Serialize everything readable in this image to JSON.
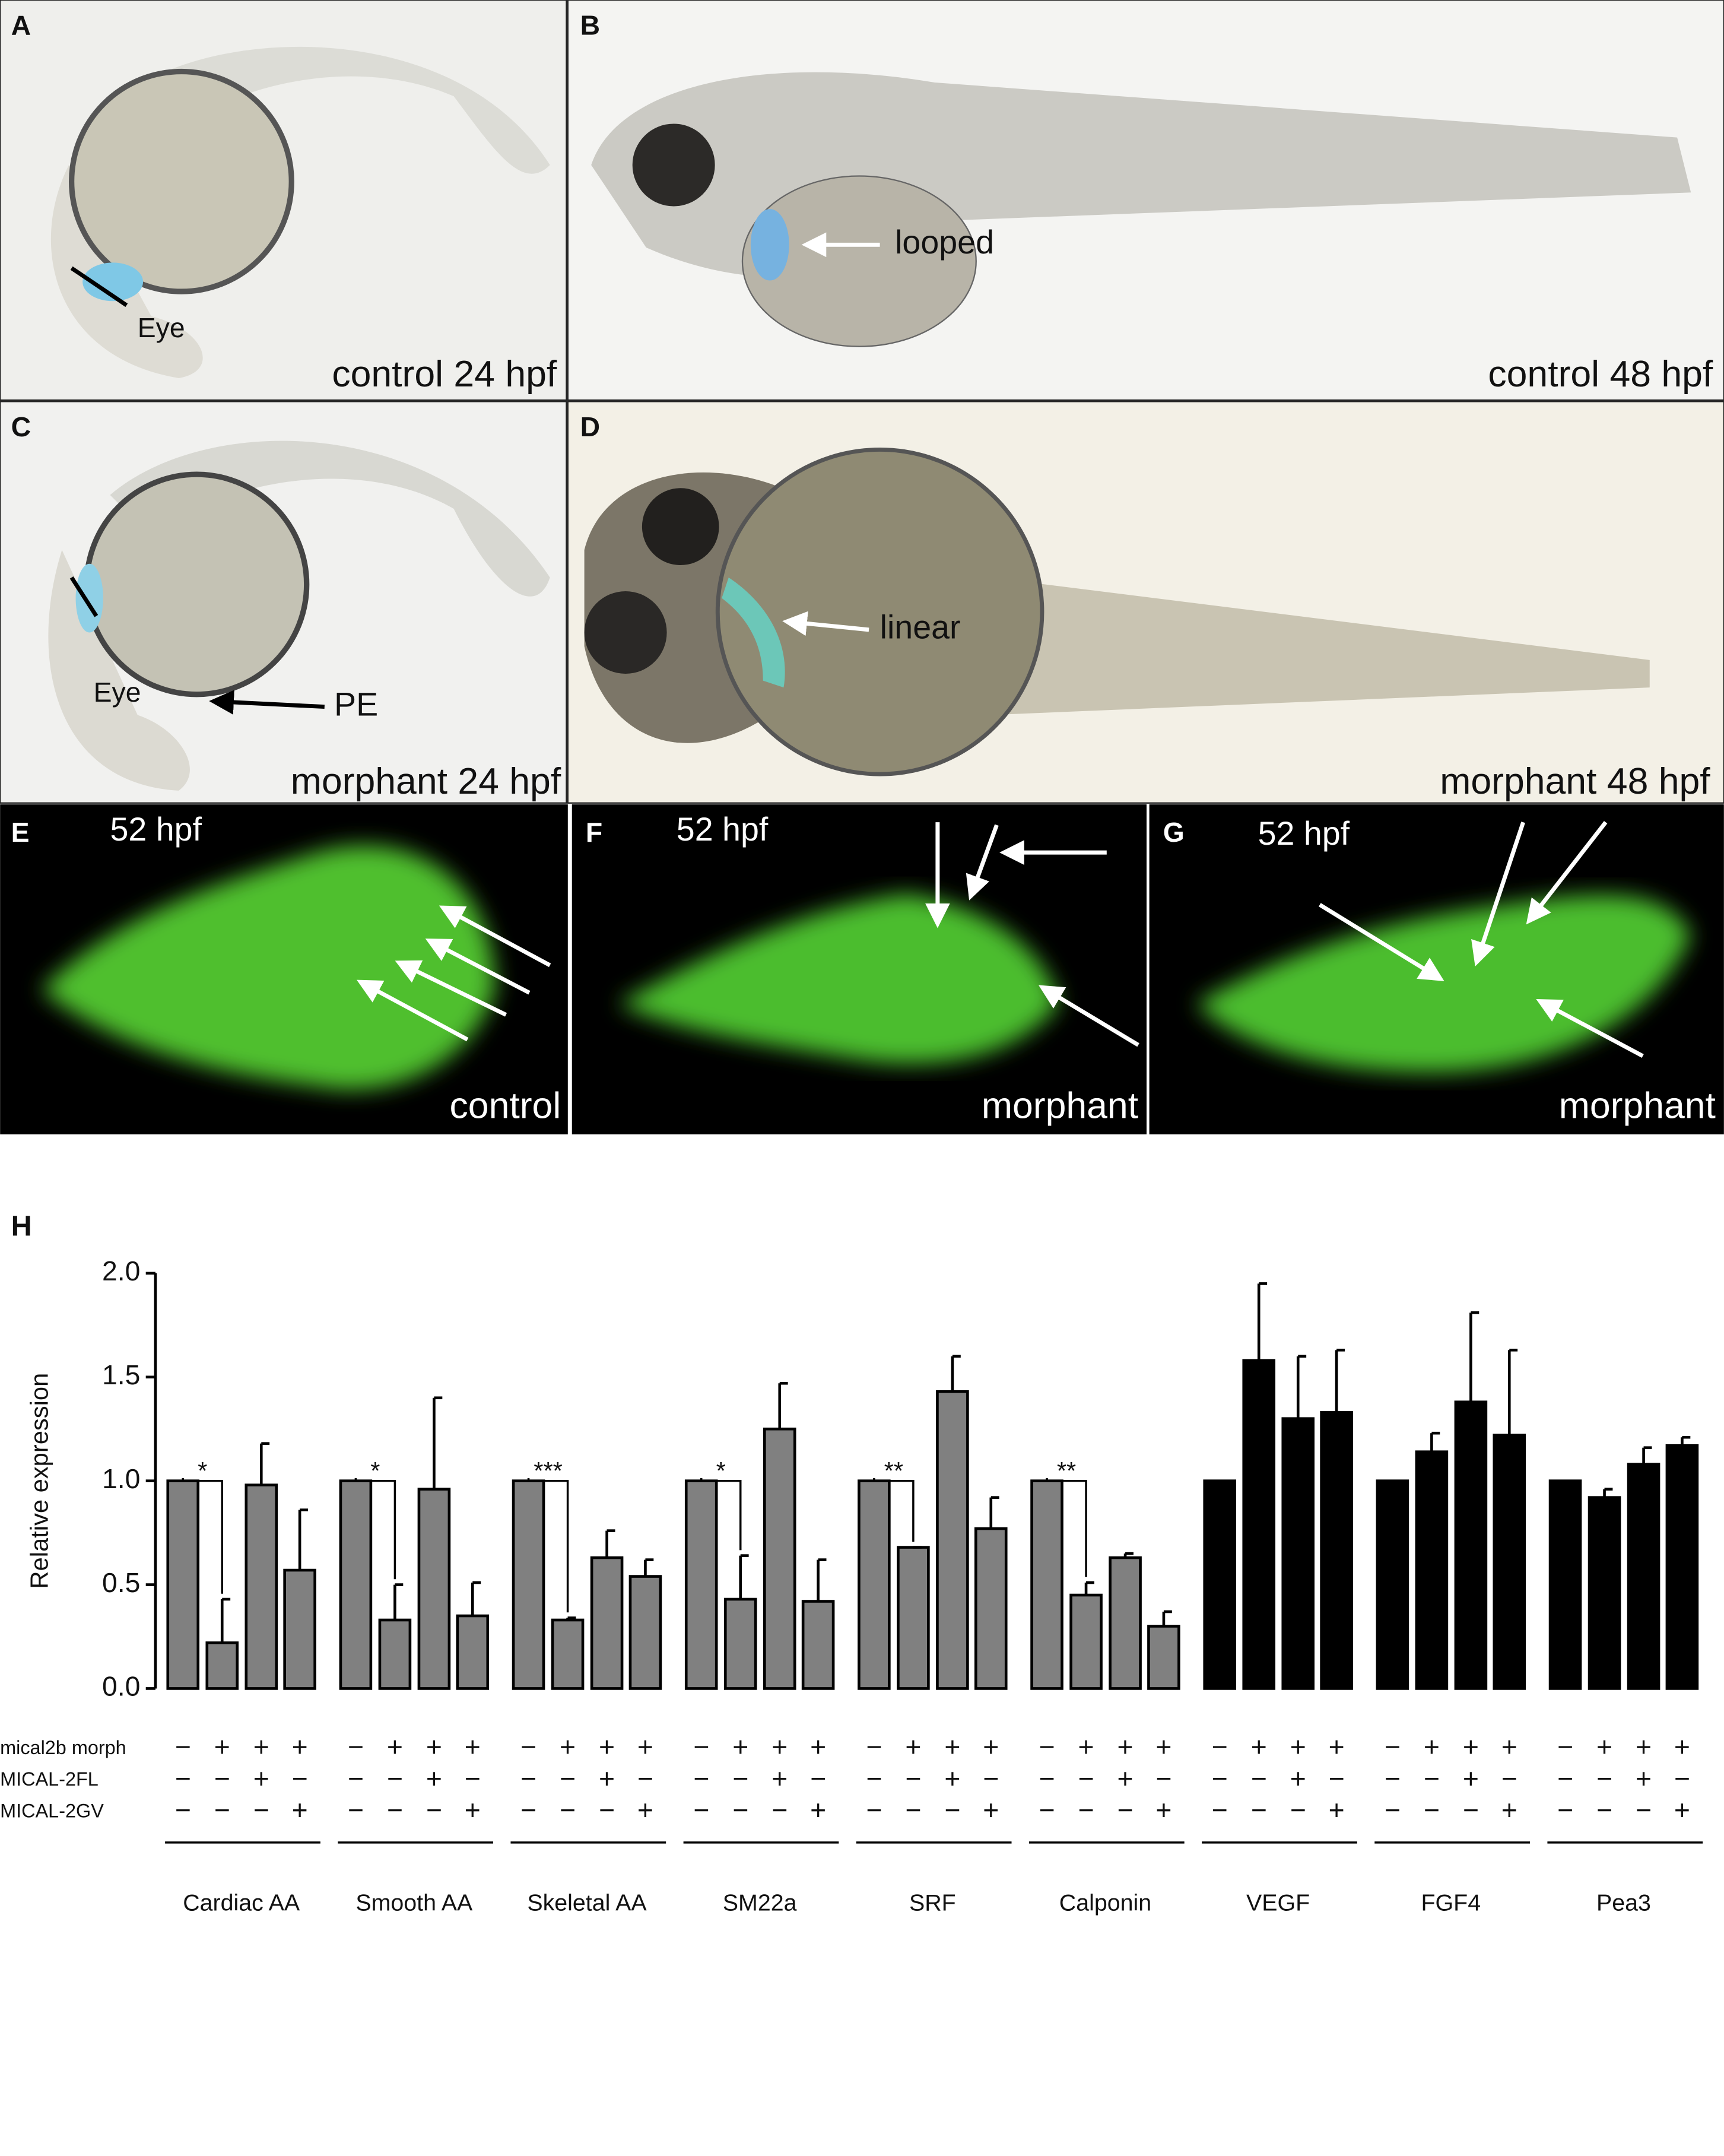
{
  "panels": [
    {
      "letter": "A",
      "caption": "control 24 hpf",
      "labels": [
        "Eye"
      ]
    },
    {
      "letter": "B",
      "caption": "control 48 hpf",
      "labels": [
        "looped"
      ]
    },
    {
      "letter": "C",
      "caption": "morphant 24 hpf",
      "labels": [
        "Eye",
        "PE"
      ]
    },
    {
      "letter": "D",
      "caption": "morphant 48 hpf",
      "labels": [
        "linear"
      ]
    },
    {
      "letter": "E",
      "stage": "52 hpf",
      "caption": "control"
    },
    {
      "letter": "F",
      "stage": "52 hpf",
      "caption": "morphant"
    },
    {
      "letter": "G",
      "stage": "52 hpf",
      "caption": "morphant"
    }
  ],
  "chart_data": {
    "type": "bar",
    "label": "H",
    "y_label": "Relative expression",
    "ylim": [
      0,
      2
    ],
    "yticks": [
      {
        "value": 0,
        "label": "0.0"
      },
      {
        "value": 0.5,
        "label": "0.5"
      },
      {
        "value": 1,
        "label": "1.0"
      },
      {
        "value": 1.5,
        "label": "1.5"
      },
      {
        "value": 2,
        "label": "2.0"
      }
    ],
    "conditions": [
      {
        "label": "mical2b morph",
        "signs": [
          "−",
          "+",
          "+",
          "+"
        ]
      },
      {
        "label": "MICAL-2FL",
        "signs": [
          "−",
          "−",
          "+",
          "−"
        ]
      },
      {
        "label": "MICAL-2GV",
        "signs": [
          "−",
          "−",
          "−",
          "+"
        ]
      }
    ],
    "groups": [
      {
        "name": "Cardiac AA",
        "color": "#808080",
        "values": [
          1.0,
          0.22,
          0.98,
          0.57
        ],
        "errors": [
          null,
          0.21,
          0.2,
          0.29
        ],
        "significance": "*"
      },
      {
        "name": "Smooth AA",
        "color": "#808080",
        "values": [
          1.0,
          0.33,
          0.96,
          0.35
        ],
        "errors": [
          null,
          0.17,
          0.44,
          0.16
        ],
        "significance": "*"
      },
      {
        "name": "Skeletal AA",
        "color": "#808080",
        "values": [
          1.0,
          0.33,
          0.63,
          0.54
        ],
        "errors": [
          null,
          0.01,
          0.13,
          0.08
        ],
        "significance": "***"
      },
      {
        "name": "SM22a",
        "color": "#808080",
        "values": [
          1.0,
          0.43,
          1.25,
          0.42
        ],
        "errors": [
          null,
          0.21,
          0.22,
          0.2
        ],
        "significance": "*"
      },
      {
        "name": "SRF",
        "color": "#808080",
        "values": [
          1.0,
          0.68,
          1.43,
          0.77
        ],
        "errors": [
          null,
          0.0,
          0.17,
          0.15
        ],
        "significance": "**"
      },
      {
        "name": "Calponin",
        "color": "#808080",
        "values": [
          1.0,
          0.45,
          0.63,
          0.3
        ],
        "errors": [
          null,
          0.06,
          0.02,
          0.07
        ],
        "significance": "**"
      },
      {
        "name": "VEGF",
        "color": "#000000",
        "values": [
          1.0,
          1.58,
          1.3,
          1.33
        ],
        "errors": [
          null,
          0.37,
          0.3,
          0.3
        ]
      },
      {
        "name": "FGF4",
        "color": "#000000",
        "values": [
          1.0,
          1.14,
          1.38,
          1.22
        ],
        "errors": [
          null,
          0.09,
          0.43,
          0.41
        ]
      },
      {
        "name": "Pea3",
        "color": "#000000",
        "values": [
          1.0,
          0.92,
          1.08,
          1.17
        ],
        "errors": [
          null,
          0.04,
          0.08,
          0.04
        ]
      }
    ]
  }
}
